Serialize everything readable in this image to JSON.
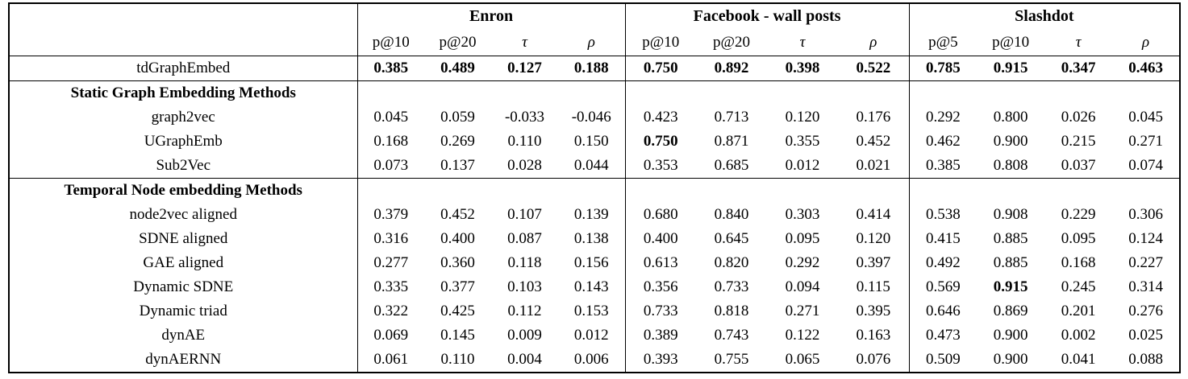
{
  "table": {
    "corner_label": "",
    "groups": [
      {
        "label": "Enron",
        "metrics": [
          "p@10",
          "p@20",
          "τ",
          "ρ"
        ]
      },
      {
        "label": "Facebook - wall posts",
        "metrics": [
          "p@10",
          "p@20",
          "τ",
          "ρ"
        ]
      },
      {
        "label": "Slashdot",
        "metrics": [
          "p@5",
          "p@10",
          "τ",
          "ρ"
        ]
      }
    ],
    "rows": [
      {
        "type": "data",
        "rule": true,
        "method": "tdGraphEmbed",
        "values": [
          "0.385",
          "0.489",
          "0.127",
          "0.188",
          "0.750",
          "0.892",
          "0.398",
          "0.522",
          "0.785",
          "0.915",
          "0.347",
          "0.463"
        ],
        "bold": [
          0,
          1,
          2,
          3,
          4,
          5,
          6,
          7,
          8,
          9,
          10,
          11
        ]
      },
      {
        "type": "section",
        "rule": true,
        "method": "Static Graph Embedding Methods"
      },
      {
        "type": "data",
        "method": "graph2vec",
        "values": [
          "0.045",
          "0.059",
          "-0.033",
          "-0.046",
          "0.423",
          "0.713",
          "0.120",
          "0.176",
          "0.292",
          "0.800",
          "0.026",
          "0.045"
        ],
        "bold": []
      },
      {
        "type": "data",
        "method": "UGraphEmb",
        "values": [
          "0.168",
          "0.269",
          "0.110",
          "0.150",
          "0.750",
          "0.871",
          "0.355",
          "0.452",
          "0.462",
          "0.900",
          "0.215",
          "0.271"
        ],
        "bold": [
          4
        ]
      },
      {
        "type": "data",
        "method": "Sub2Vec",
        "values": [
          "0.073",
          "0.137",
          "0.028",
          "0.044",
          "0.353",
          "0.685",
          "0.012",
          "0.021",
          "0.385",
          "0.808",
          "0.037",
          "0.074"
        ],
        "bold": []
      },
      {
        "type": "section",
        "rule": true,
        "method": "Temporal Node embedding Methods"
      },
      {
        "type": "data",
        "method": "node2vec aligned",
        "values": [
          "0.379",
          "0.452",
          "0.107",
          "0.139",
          "0.680",
          "0.840",
          "0.303",
          "0.414",
          "0.538",
          "0.908",
          "0.229",
          "0.306"
        ],
        "bold": []
      },
      {
        "type": "data",
        "method": "SDNE aligned",
        "values": [
          "0.316",
          "0.400",
          "0.087",
          "0.138",
          "0.400",
          "0.645",
          "0.095",
          "0.120",
          "0.415",
          "0.885",
          "0.095",
          "0.124"
        ],
        "bold": []
      },
      {
        "type": "data",
        "method": "GAE aligned",
        "values": [
          "0.277",
          "0.360",
          "0.118",
          "0.156",
          "0.613",
          "0.820",
          "0.292",
          "0.397",
          "0.492",
          "0.885",
          "0.168",
          "0.227"
        ],
        "bold": []
      },
      {
        "type": "data",
        "method": "Dynamic SDNE",
        "values": [
          "0.335",
          "0.377",
          "0.103",
          "0.143",
          "0.356",
          "0.733",
          "0.094",
          "0.115",
          "0.569",
          "0.915",
          "0.245",
          "0.314"
        ],
        "bold": [
          9
        ]
      },
      {
        "type": "data",
        "method": "Dynamic triad",
        "values": [
          "0.322",
          "0.425",
          "0.112",
          "0.153",
          "0.733",
          "0.818",
          "0.271",
          "0.395",
          "0.646",
          "0.869",
          "0.201",
          "0.276"
        ],
        "bold": []
      },
      {
        "type": "data",
        "method": "dynAE",
        "values": [
          "0.069",
          "0.145",
          "0.009",
          "0.012",
          "0.389",
          "0.743",
          "0.122",
          "0.163",
          "0.473",
          "0.900",
          "0.002",
          "0.025"
        ],
        "bold": []
      },
      {
        "type": "data",
        "method": "dynAERNN",
        "values": [
          "0.061",
          "0.110",
          "0.004",
          "0.006",
          "0.393",
          "0.755",
          "0.065",
          "0.076",
          "0.509",
          "0.900",
          "0.041",
          "0.088"
        ],
        "bold": []
      }
    ]
  }
}
